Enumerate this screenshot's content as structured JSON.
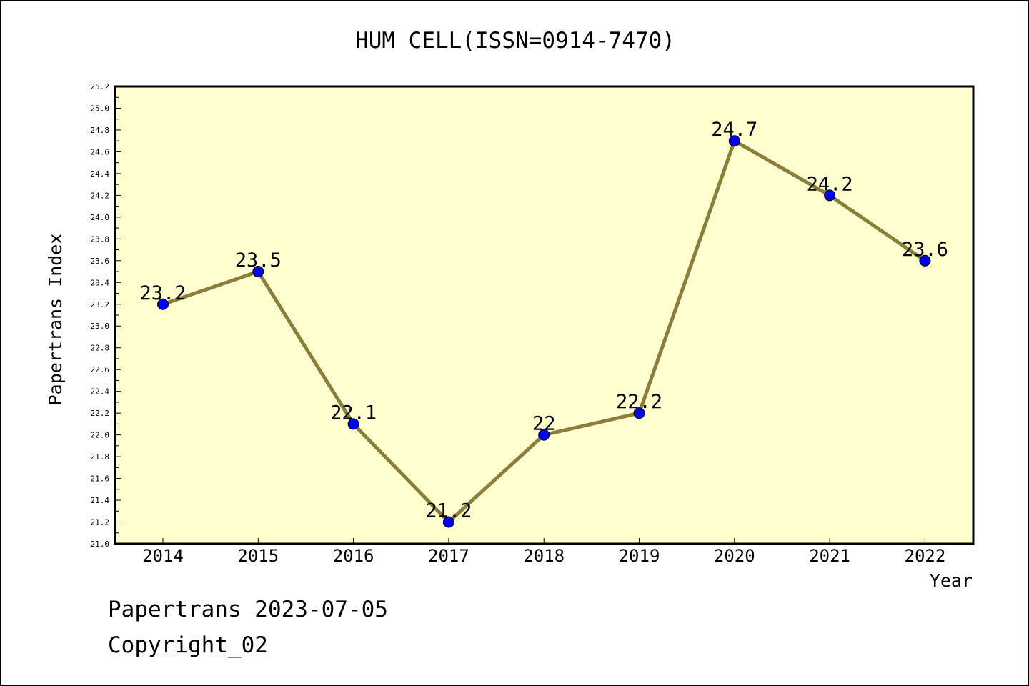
{
  "chart_data": {
    "type": "line",
    "title": "HUM CELL(ISSN=0914-7470)",
    "xlabel": "Year",
    "ylabel": "Papertrans Index",
    "categories": [
      "2014",
      "2015",
      "2016",
      "2017",
      "2018",
      "2019",
      "2020",
      "2021",
      "2022"
    ],
    "values": [
      23.2,
      23.5,
      22.1,
      21.2,
      22.0,
      22.2,
      24.7,
      24.2,
      23.6
    ],
    "data_labels": [
      "23.2",
      "23.5",
      "22.1",
      "21.2",
      "22",
      "22.2",
      "24.7",
      "24.2",
      "23.6"
    ],
    "ylim": [
      21.0,
      25.2
    ],
    "yticks": [
      "21.0",
      "21.2",
      "21.4",
      "21.6",
      "21.8",
      "22.0",
      "22.2",
      "22.4",
      "22.6",
      "22.8",
      "23.0",
      "23.2",
      "23.4",
      "23.6",
      "23.8",
      "24.0",
      "24.2",
      "24.4",
      "24.6",
      "24.8",
      "25.0",
      "25.2"
    ],
    "grid": false,
    "colors": {
      "plot_background": "#ffffd0",
      "line": "#8b7d3a",
      "marker": "#0000ee"
    }
  },
  "footer": {
    "line1": "Papertrans 2023-07-05",
    "line2": "Copyright_02"
  }
}
